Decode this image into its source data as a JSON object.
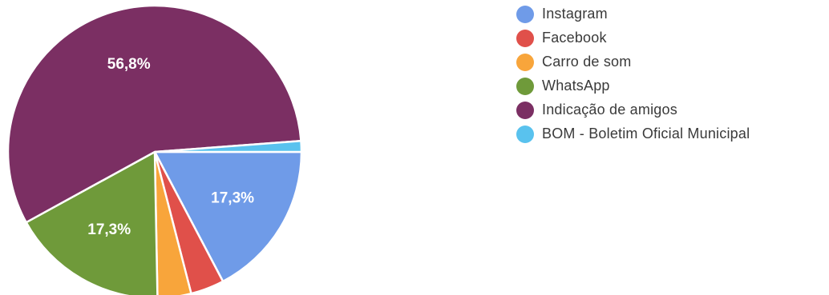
{
  "chart_data": {
    "type": "pie",
    "categories": [
      "Instagram",
      "Facebook",
      "Carro de som",
      "WhatsApp",
      "Indicação de amigos",
      "BOM - Boletim Oficial Municipal"
    ],
    "values": [
      17.3,
      3.7,
      3.7,
      17.3,
      56.8,
      1.2
    ],
    "data_labels": [
      "17,3%",
      "",
      "",
      "17,3%",
      "56,8%",
      ""
    ],
    "colors": [
      "#6f9be8",
      "#e0504a",
      "#f8a53b",
      "#6f9a3a",
      "#7b2f63",
      "#59c2ee"
    ],
    "legend": "right"
  }
}
